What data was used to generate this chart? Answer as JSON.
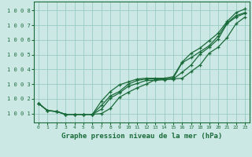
{
  "xlabel": "Graphe pression niveau de la mer (hPa)",
  "ylim": [
    1000.4,
    1008.6
  ],
  "xlim": [
    -0.5,
    23.5
  ],
  "yticks": [
    1001,
    1002,
    1003,
    1004,
    1005,
    1006,
    1007,
    1008
  ],
  "xticks": [
    0,
    1,
    2,
    3,
    4,
    5,
    6,
    7,
    8,
    9,
    10,
    11,
    12,
    13,
    14,
    15,
    16,
    17,
    18,
    19,
    20,
    21,
    22,
    23
  ],
  "background_color": "#cce8e4",
  "grid_color": "#99ccc6",
  "line_color": "#1a6b3a",
  "lines": [
    [
      1001.7,
      1001.2,
      1001.15,
      1000.95,
      1000.95,
      1000.95,
      1000.95,
      1001.0,
      1001.35,
      1002.1,
      1002.45,
      1002.75,
      1003.0,
      1003.3,
      1003.35,
      1003.35,
      1003.4,
      1003.85,
      1004.3,
      1005.1,
      1005.5,
      1006.15,
      1007.1,
      1007.55
    ],
    [
      1001.7,
      1001.2,
      1001.15,
      1000.95,
      1000.95,
      1000.95,
      1000.95,
      1001.3,
      1002.05,
      1002.4,
      1002.85,
      1003.05,
      1003.25,
      1003.25,
      1003.3,
      1003.35,
      1003.8,
      1004.3,
      1005.05,
      1005.5,
      1006.05,
      1007.1,
      1007.55,
      1007.8
    ],
    [
      1001.7,
      1001.2,
      1001.15,
      1000.95,
      1000.95,
      1000.95,
      1000.95,
      1001.55,
      1002.2,
      1002.5,
      1003.0,
      1003.25,
      1003.35,
      1003.35,
      1003.35,
      1003.4,
      1004.45,
      1004.8,
      1005.2,
      1005.6,
      1006.25,
      1007.15,
      1007.65,
      1007.85
    ],
    [
      1001.7,
      1001.2,
      1001.15,
      1000.95,
      1000.95,
      1000.95,
      1000.95,
      1001.85,
      1002.5,
      1002.95,
      1003.15,
      1003.35,
      1003.4,
      1003.4,
      1003.4,
      1003.5,
      1004.5,
      1005.1,
      1005.45,
      1005.95,
      1006.45,
      1007.25,
      1007.85,
      1008.1
    ]
  ]
}
